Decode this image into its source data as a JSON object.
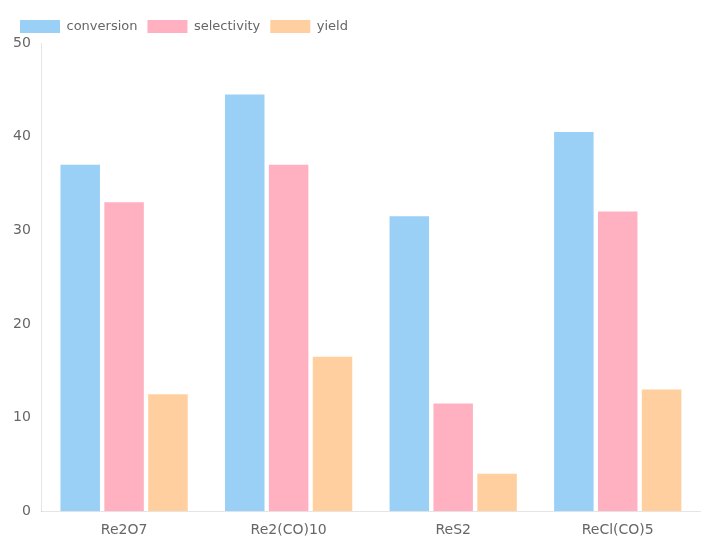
{
  "chart_data": {
    "type": "bar",
    "categories": [
      "Re2O7",
      "Re2(CO)10",
      "ReS2",
      "ReCl(CO)5"
    ],
    "series": [
      {
        "name": "conversion",
        "values": [
          37.0,
          44.5,
          31.5,
          40.5
        ]
      },
      {
        "name": "selectivity",
        "values": [
          33.0,
          37.0,
          11.5,
          32.0
        ]
      },
      {
        "name": "yield",
        "values": [
          12.5,
          16.5,
          4.0,
          13.0
        ]
      }
    ],
    "ylim": [
      0,
      50
    ],
    "yticks": [
      0,
      10,
      20,
      30,
      40,
      50
    ],
    "grid": false,
    "legend": "upper left"
  }
}
